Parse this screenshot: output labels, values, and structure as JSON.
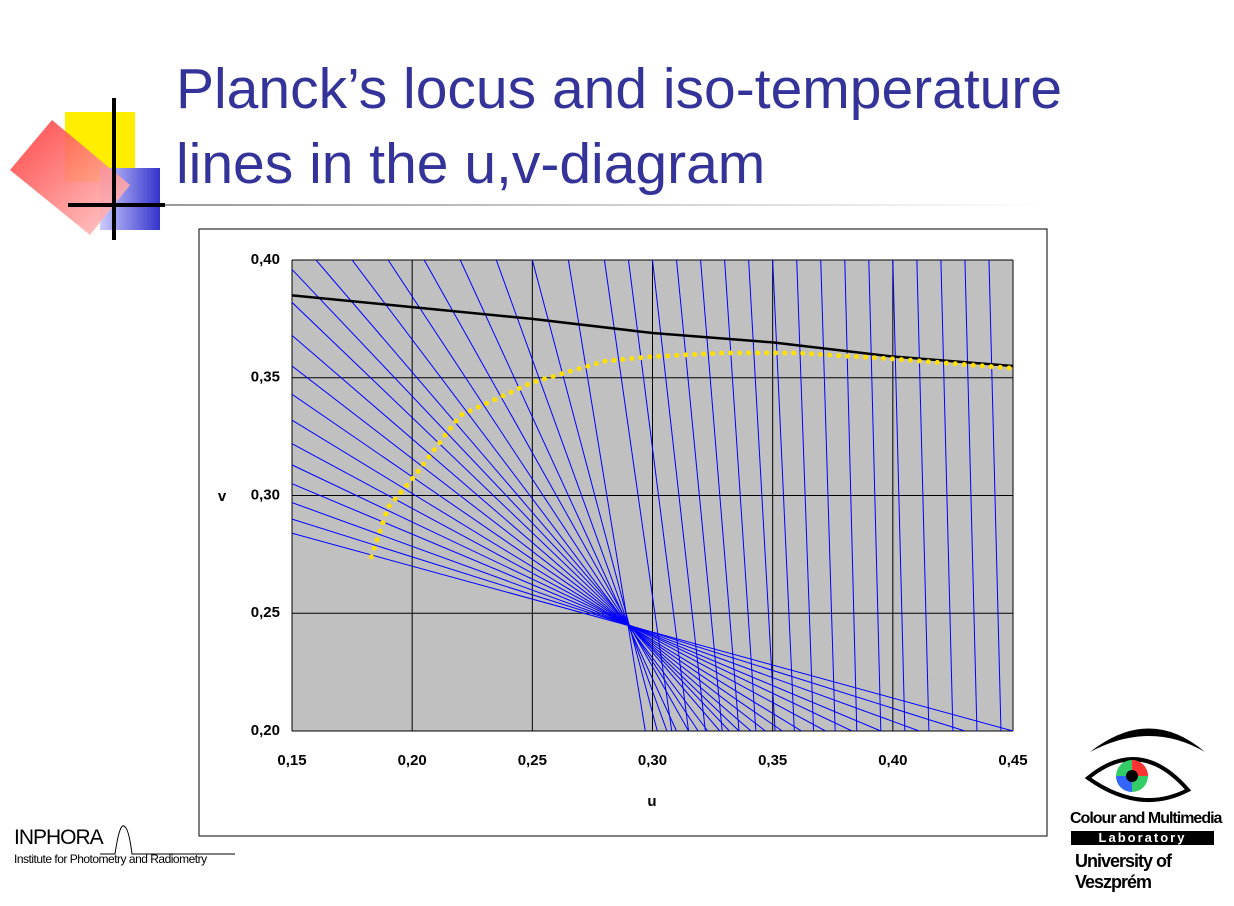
{
  "slide": {
    "title": "Planck’s locus and iso-temperature lines in the u,v-diagram",
    "left_logo": {
      "name": "INPHORA",
      "subtitle": "Institute for Photometry and Radiometry"
    },
    "right_logo": {
      "line1": "Colour and Multimedia",
      "line2": "Laboratory",
      "line3": "University of Veszprém"
    }
  },
  "chart_data": {
    "type": "line",
    "x_label": "u",
    "y_label": "v",
    "xlim": [
      0.15,
      0.45
    ],
    "ylim": [
      0.2,
      0.4
    ],
    "xticks": [
      {
        "value": 0.15,
        "label": "0,15"
      },
      {
        "value": 0.2,
        "label": "0,20"
      },
      {
        "value": 0.25,
        "label": "0,25"
      },
      {
        "value": 0.3,
        "label": "0,30"
      },
      {
        "value": 0.35,
        "label": "0,35"
      },
      {
        "value": 0.4,
        "label": "0,40"
      },
      {
        "value": 0.45,
        "label": "0,45"
      }
    ],
    "yticks": [
      {
        "value": 0.2,
        "label": "0,20"
      },
      {
        "value": 0.25,
        "label": "0,25"
      },
      {
        "value": 0.3,
        "label": "0,30"
      },
      {
        "value": 0.35,
        "label": "0,35"
      },
      {
        "value": 0.4,
        "label": "0,40"
      }
    ],
    "grid": true,
    "plot_background": "#c0c0c0",
    "series": [
      {
        "color": "#000000",
        "style": "solid",
        "x": [
          0.15,
          0.2,
          0.25,
          0.3,
          0.35,
          0.4,
          0.45
        ],
        "values": [
          0.385,
          0.38,
          0.375,
          0.369,
          0.365,
          0.359,
          0.355
        ]
      },
      {
        "color": "#ffe000",
        "style": "dotted",
        "x": [
          0.183,
          0.19,
          0.2,
          0.22,
          0.25,
          0.28,
          0.3,
          0.33,
          0.36,
          0.4,
          0.45
        ],
        "values": [
          0.274,
          0.295,
          0.307,
          0.334,
          0.348,
          0.357,
          0.359,
          0.3605,
          0.3605,
          0.358,
          0.354
        ]
      }
    ],
    "lines_color": "#0000ff",
    "lines": [
      {
        "x": [
          0.15,
          0.45
        ],
        "values": [
          0.284,
          0.2
        ]
      },
      {
        "x": [
          0.15,
          0.43
        ],
        "values": [
          0.29,
          0.2
        ]
      },
      {
        "x": [
          0.15,
          0.411
        ],
        "values": [
          0.297,
          0.2
        ]
      },
      {
        "x": [
          0.15,
          0.395
        ],
        "values": [
          0.305,
          0.2
        ]
      },
      {
        "x": [
          0.15,
          0.383
        ],
        "values": [
          0.313,
          0.2
        ]
      },
      {
        "x": [
          0.15,
          0.372
        ],
        "values": [
          0.322,
          0.2
        ]
      },
      {
        "x": [
          0.15,
          0.362
        ],
        "values": [
          0.332,
          0.2
        ]
      },
      {
        "x": [
          0.15,
          0.354
        ],
        "values": [
          0.343,
          0.2
        ]
      },
      {
        "x": [
          0.15,
          0.347
        ],
        "values": [
          0.355,
          0.2
        ]
      },
      {
        "x": [
          0.15,
          0.341
        ],
        "values": [
          0.368,
          0.2
        ]
      },
      {
        "x": [
          0.15,
          0.336
        ],
        "values": [
          0.382,
          0.2
        ]
      },
      {
        "x": [
          0.15,
          0.332
        ],
        "values": [
          0.396,
          0.2
        ]
      },
      {
        "x": [
          0.16,
          0.328
        ],
        "values": [
          0.4,
          0.2
        ]
      },
      {
        "x": [
          0.175,
          0.323
        ],
        "values": [
          0.4,
          0.2
        ]
      },
      {
        "x": [
          0.19,
          0.319
        ],
        "values": [
          0.4,
          0.2
        ]
      },
      {
        "x": [
          0.205,
          0.315
        ],
        "values": [
          0.4,
          0.2
        ]
      },
      {
        "x": [
          0.22,
          0.31
        ],
        "values": [
          0.4,
          0.2
        ]
      },
      {
        "x": [
          0.235,
          0.306
        ],
        "values": [
          0.4,
          0.2
        ]
      },
      {
        "x": [
          0.25,
          0.302
        ],
        "values": [
          0.4,
          0.2
        ]
      },
      {
        "x": [
          0.265,
          0.297
        ],
        "values": [
          0.4,
          0.2
        ]
      },
      {
        "x": [
          0.28,
          0.308
        ],
        "values": [
          0.4,
          0.2
        ]
      },
      {
        "x": [
          0.29,
          0.315
        ],
        "values": [
          0.4,
          0.2
        ]
      },
      {
        "x": [
          0.3,
          0.322
        ],
        "values": [
          0.4,
          0.2
        ]
      },
      {
        "x": [
          0.31,
          0.329
        ],
        "values": [
          0.4,
          0.2
        ]
      },
      {
        "x": [
          0.32,
          0.336
        ],
        "values": [
          0.4,
          0.2
        ]
      },
      {
        "x": [
          0.33,
          0.343
        ],
        "values": [
          0.4,
          0.2
        ]
      },
      {
        "x": [
          0.34,
          0.351
        ],
        "values": [
          0.4,
          0.2
        ]
      },
      {
        "x": [
          0.35,
          0.359
        ],
        "values": [
          0.4,
          0.2
        ]
      },
      {
        "x": [
          0.36,
          0.367
        ],
        "values": [
          0.4,
          0.2
        ]
      },
      {
        "x": [
          0.37,
          0.376
        ],
        "values": [
          0.4,
          0.2
        ]
      },
      {
        "x": [
          0.38,
          0.385
        ],
        "values": [
          0.4,
          0.2
        ]
      },
      {
        "x": [
          0.39,
          0.395
        ],
        "values": [
          0.4,
          0.2
        ]
      },
      {
        "x": [
          0.4,
          0.405
        ],
        "values": [
          0.4,
          0.2
        ]
      },
      {
        "x": [
          0.41,
          0.415
        ],
        "values": [
          0.4,
          0.2
        ]
      },
      {
        "x": [
          0.42,
          0.425
        ],
        "values": [
          0.4,
          0.2
        ]
      },
      {
        "x": [
          0.43,
          0.435
        ],
        "values": [
          0.4,
          0.2
        ]
      },
      {
        "x": [
          0.44,
          0.445
        ],
        "values": [
          0.4,
          0.2
        ]
      }
    ]
  }
}
